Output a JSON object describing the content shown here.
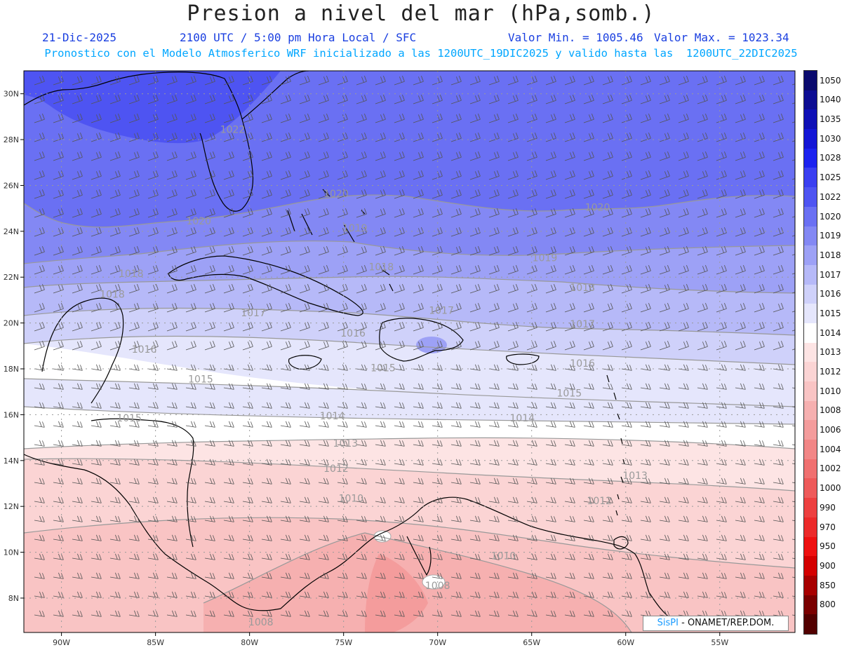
{
  "header": {
    "title": "Presion a nivel del mar (hPa,somb.)",
    "date": "21-Dic-2025",
    "time": "2100 UTC / 5:00 pm Hora Local / SFC",
    "vmin": "Valor Min. = 1005.46",
    "vmax": "Valor Max. = 1023.34",
    "forecast": "Pronostico con el Modelo Atmosferico WRF inicializado a las 1200UTC_19DIC2025 y valido hasta las  1200UTC_22DIC2025"
  },
  "map": {
    "lon_range": [
      -92,
      -51
    ],
    "lat_range": [
      6.5,
      31
    ],
    "lon_ticks": [
      {
        "lon": -90,
        "label": "90W"
      },
      {
        "lon": -85,
        "label": "85W"
      },
      {
        "lon": -80,
        "label": "80W"
      },
      {
        "lon": -75,
        "label": "75W"
      },
      {
        "lon": -70,
        "label": "70W"
      },
      {
        "lon": -65,
        "label": "65W"
      },
      {
        "lon": -60,
        "label": "60W"
      },
      {
        "lon": -55,
        "label": "55W"
      }
    ],
    "lat_ticks": [
      {
        "lat": 30,
        "label": "30N"
      },
      {
        "lat": 28,
        "label": "28N"
      },
      {
        "lat": 26,
        "label": "26N"
      },
      {
        "lat": 24,
        "label": "24N"
      },
      {
        "lat": 22,
        "label": "22N"
      },
      {
        "lat": 20,
        "label": "20N"
      },
      {
        "lat": 18,
        "label": "18N"
      },
      {
        "lat": 16,
        "label": "16N"
      },
      {
        "lat": 14,
        "label": "14N"
      },
      {
        "lat": 12,
        "label": "12N"
      },
      {
        "lat": 10,
        "label": "10N"
      },
      {
        "lat": 8,
        "label": "8N"
      }
    ],
    "contour_labels": [
      {
        "text": "1022",
        "lon": -80.9,
        "lat": 28.3
      },
      {
        "text": "1020",
        "lon": -82.7,
        "lat": 24.3
      },
      {
        "text": "1020",
        "lon": -75.4,
        "lat": 25.5
      },
      {
        "text": "1020",
        "lon": -61.5,
        "lat": 24.9
      },
      {
        "text": "1019",
        "lon": -74.4,
        "lat": 24.0
      },
      {
        "text": "1019",
        "lon": -64.3,
        "lat": 22.7
      },
      {
        "text": "1018",
        "lon": -86.3,
        "lat": 22.0
      },
      {
        "text": "1018",
        "lon": -73.0,
        "lat": 22.3
      },
      {
        "text": "1018",
        "lon": -62.3,
        "lat": 21.4
      },
      {
        "text": "1018",
        "lon": -87.3,
        "lat": 21.1
      },
      {
        "text": "1017",
        "lon": -79.8,
        "lat": 20.3
      },
      {
        "text": "1017",
        "lon": -69.8,
        "lat": 20.4
      },
      {
        "text": "1017",
        "lon": -62.3,
        "lat": 19.8
      },
      {
        "text": "1016",
        "lon": -85.6,
        "lat": 18.7
      },
      {
        "text": "1016",
        "lon": -74.5,
        "lat": 19.4
      },
      {
        "text": "1016",
        "lon": -62.3,
        "lat": 18.1
      },
      {
        "text": "1015",
        "lon": -82.6,
        "lat": 17.4
      },
      {
        "text": "1015",
        "lon": -72.9,
        "lat": 17.9
      },
      {
        "text": "1015",
        "lon": -63.0,
        "lat": 16.8
      },
      {
        "text": "1015",
        "lon": -86.4,
        "lat": 15.7
      },
      {
        "text": "1014",
        "lon": -75.6,
        "lat": 15.8
      },
      {
        "text": "1014",
        "lon": -65.5,
        "lat": 15.7
      },
      {
        "text": "1013",
        "lon": -74.9,
        "lat": 14.6
      },
      {
        "text": "1013",
        "lon": -59.5,
        "lat": 13.2
      },
      {
        "text": "1012",
        "lon": -75.4,
        "lat": 13.5
      },
      {
        "text": "1012",
        "lon": -61.4,
        "lat": 12.1
      },
      {
        "text": "1010",
        "lon": -74.6,
        "lat": 12.2
      },
      {
        "text": "1010",
        "lon": -66.5,
        "lat": 9.7
      },
      {
        "text": "1008",
        "lon": -70.0,
        "lat": 8.4
      },
      {
        "text": "1008",
        "lon": -79.4,
        "lat": 6.8
      }
    ],
    "credit_brand": "SisPI",
    "credit_text": " - ONAMET/REP.DOM."
  },
  "colorbar": {
    "levels": [
      {
        "label": "1050",
        "color": "#0b0b6e"
      },
      {
        "label": "1040",
        "color": "#0d0d93"
      },
      {
        "label": "1035",
        "color": "#0f10b6"
      },
      {
        "label": "1030",
        "color": "#1416d6"
      },
      {
        "label": "1028",
        "color": "#1c22ef"
      },
      {
        "label": "1025",
        "color": "#3a3ff1"
      },
      {
        "label": "1022",
        "color": "#4e54f2"
      },
      {
        "label": "1020",
        "color": "#6a70f3"
      },
      {
        "label": "1019",
        "color": "#8388f4"
      },
      {
        "label": "1018",
        "color": "#9da1f6"
      },
      {
        "label": "1017",
        "color": "#b6b9f8"
      },
      {
        "label": "1016",
        "color": "#cfd1fa"
      },
      {
        "label": "1015",
        "color": "#e5e6fc"
      },
      {
        "label": "1014",
        "color": "#ffffff"
      },
      {
        "label": "1013",
        "color": "#fde4e4"
      },
      {
        "label": "1012",
        "color": "#fbd4d4"
      },
      {
        "label": "1010",
        "color": "#f9c4c4"
      },
      {
        "label": "1008",
        "color": "#f6b0b0"
      },
      {
        "label": "1006",
        "color": "#f49c9c"
      },
      {
        "label": "1004",
        "color": "#f28686"
      },
      {
        "label": "1002",
        "color": "#f07070"
      },
      {
        "label": "1000",
        "color": "#ee5a5a"
      },
      {
        "label": "990",
        "color": "#ed4040"
      },
      {
        "label": "970",
        "color": "#ec2a2a"
      },
      {
        "label": "950",
        "color": "#ee1010"
      },
      {
        "label": "900",
        "color": "#d40000"
      },
      {
        "label": "850",
        "color": "#a80000"
      },
      {
        "label": "800",
        "color": "#7a0000"
      },
      {
        "label": "",
        "color": "#520000"
      }
    ]
  }
}
